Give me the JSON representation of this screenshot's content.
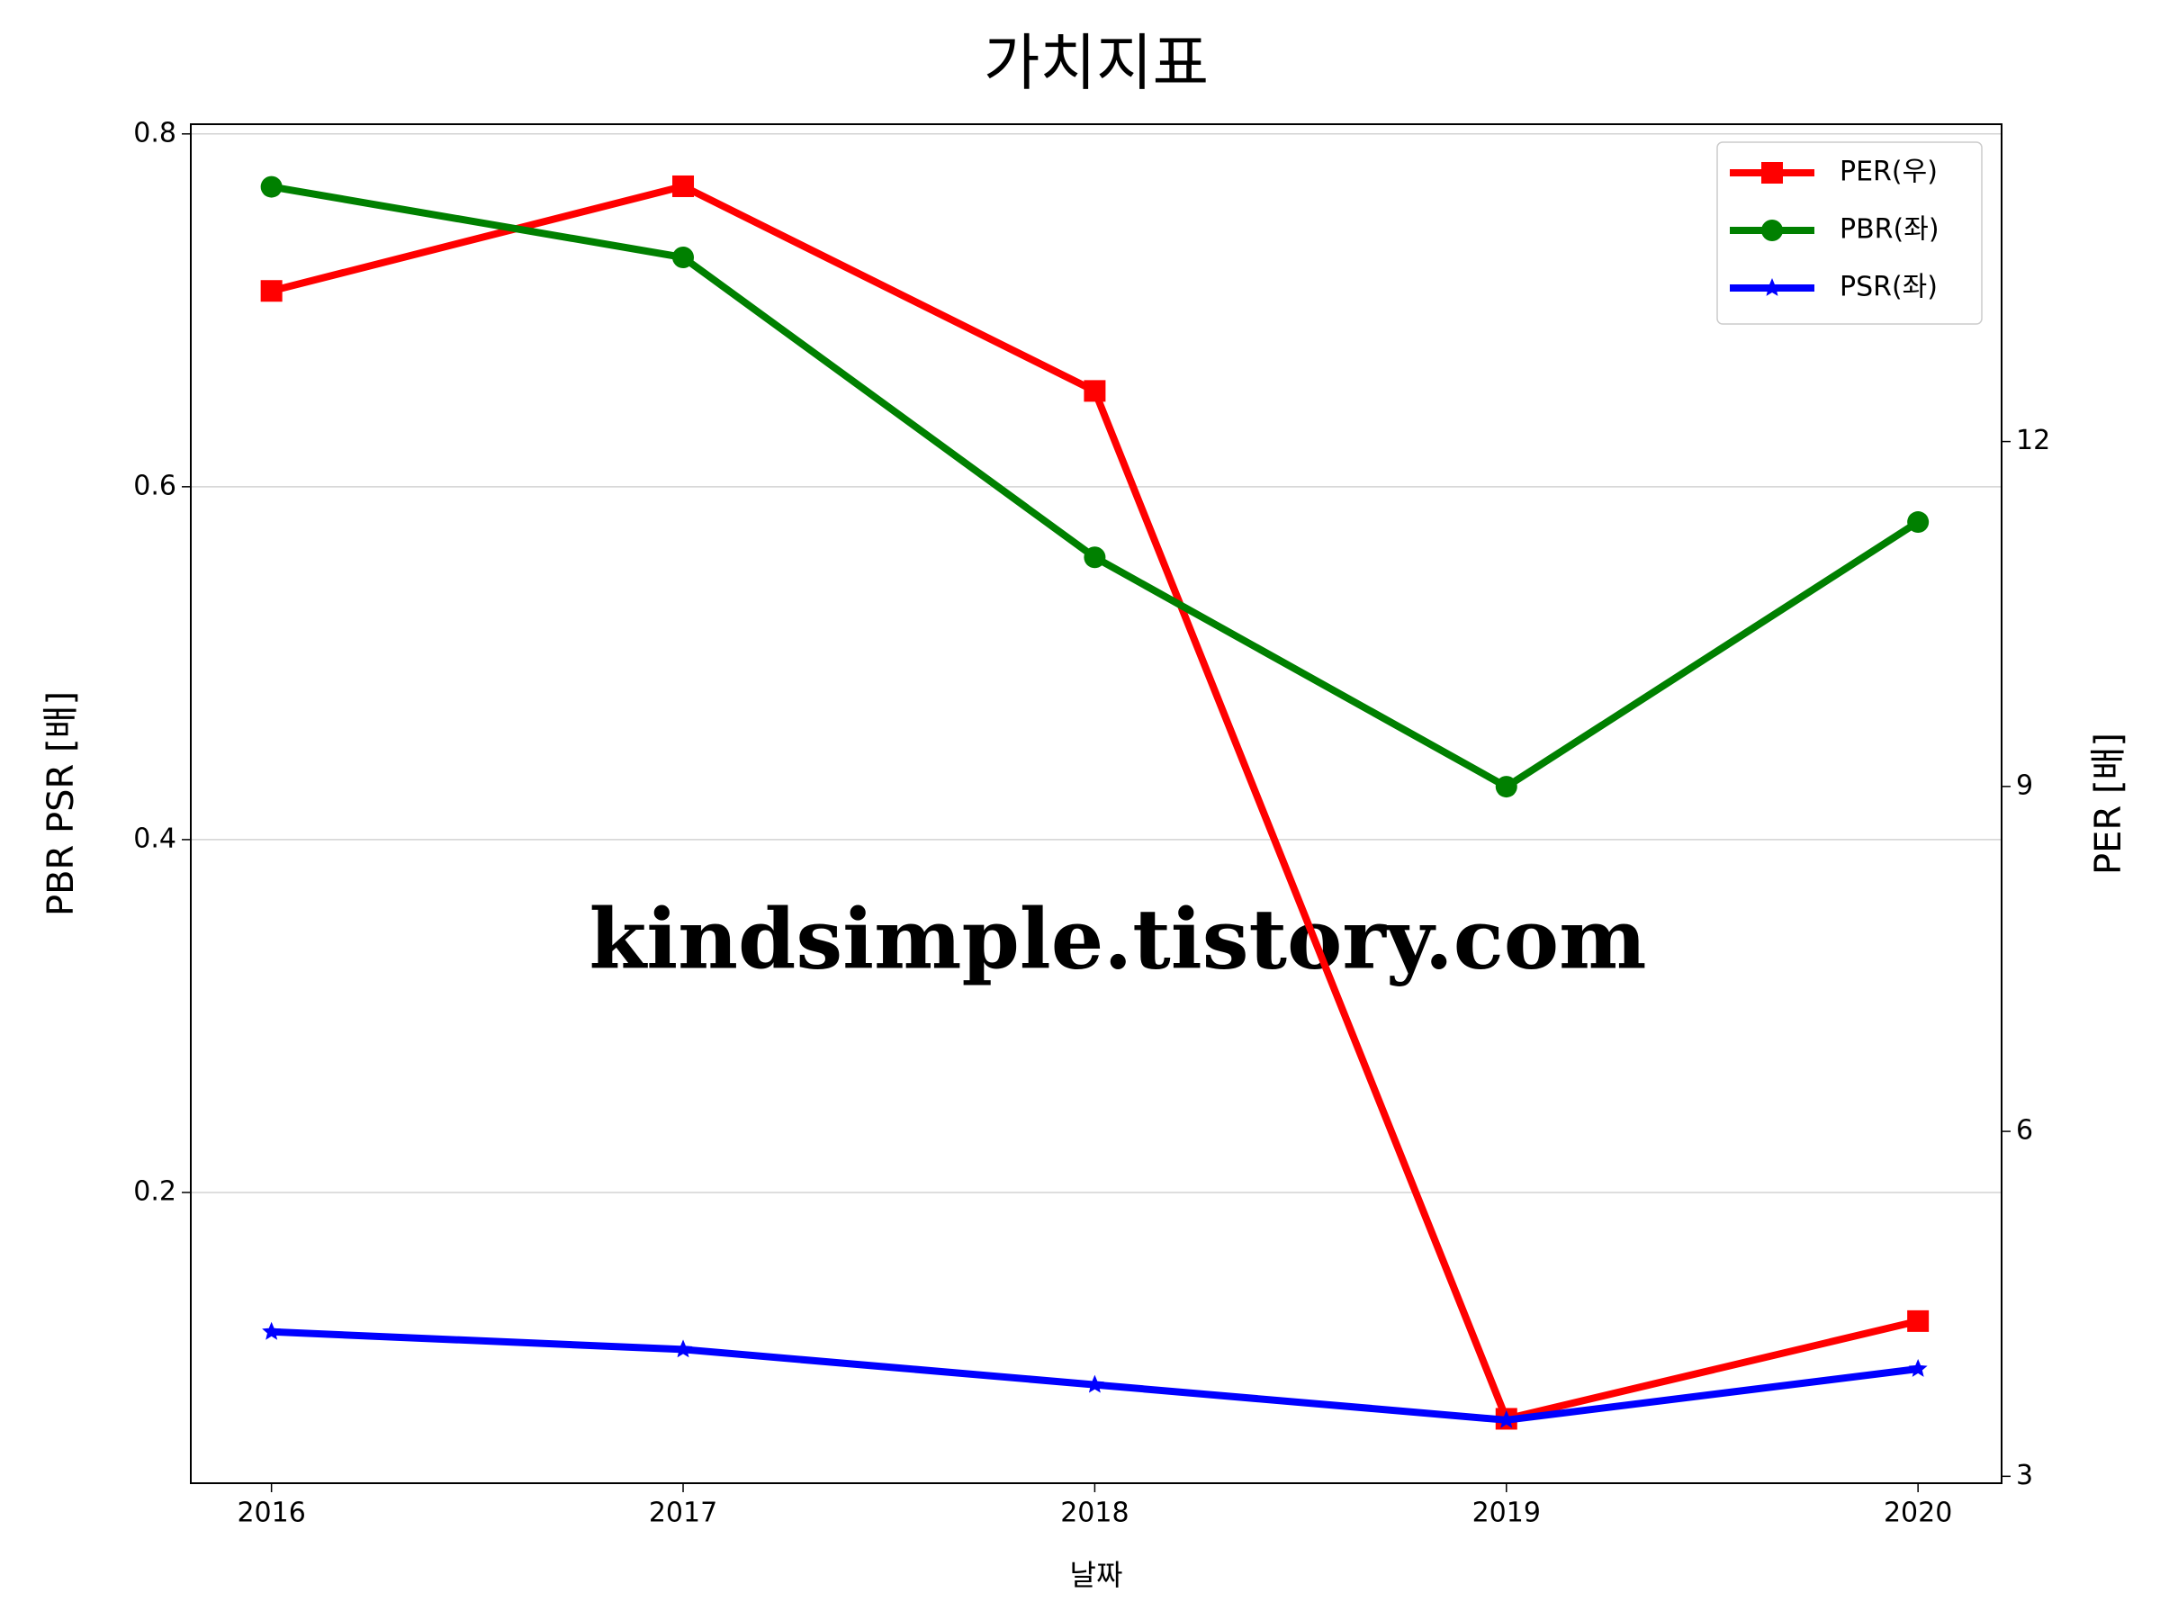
{
  "chart_data": {
    "type": "line",
    "title": "가치지표",
    "xlabel": "날짜",
    "ylabel": "PBR PSR [배]",
    "y2label": "PER [배]",
    "annotation": "kindsimple.tistory.com",
    "x": [
      2016,
      2017,
      2018,
      2019,
      2020
    ],
    "xlim": [
      2015.804,
      2020.203
    ],
    "xticks": [
      2016,
      2017,
      2018,
      2019,
      2020
    ],
    "ylim": [
      0.0352,
      0.8055
    ],
    "yticks": [
      0.2,
      0.4,
      0.6,
      0.8
    ],
    "y2lim": [
      2.94,
      14.76
    ],
    "y2ticks": [
      3,
      6,
      9,
      12
    ],
    "grid": true,
    "legend": "upper right",
    "ylabel_color": "#008000",
    "y2label_color": "#ff0000",
    "annotation_color": "#e4a6ea",
    "series": [
      {
        "name": "PER(우)",
        "color": "#ff0000",
        "marker": "square",
        "axis": "y2",
        "values": [
          13.31,
          14.22,
          12.44,
          3.5,
          4.35
        ]
      },
      {
        "name": "PBR(좌)",
        "color": "#008000",
        "marker": "circle",
        "values": [
          0.77,
          0.73,
          0.56,
          0.43,
          0.58
        ]
      },
      {
        "name": "PSR(좌)",
        "color": "#0000ff",
        "marker": "star",
        "values": [
          0.121,
          0.111,
          0.091,
          0.071,
          0.1
        ]
      }
    ]
  }
}
